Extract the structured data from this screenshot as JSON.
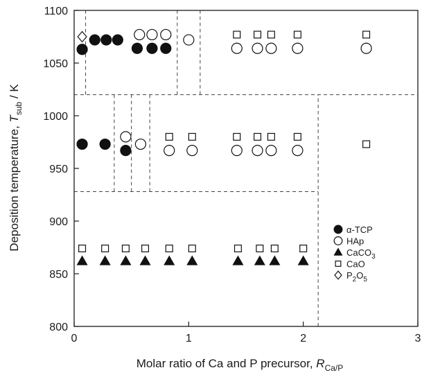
{
  "chart_data": {
    "type": "scatter",
    "xlabel": {
      "main": "Molar ratio of Ca and P precursor, ",
      "sym": "R",
      "sub": "Ca/P"
    },
    "ylabel": {
      "main": "Deposition temperature, ",
      "sym": "T",
      "sub": "sub",
      "unit": " / K"
    },
    "xlim": [
      0,
      3
    ],
    "ylim": [
      800,
      1100
    ],
    "xticks": [
      0,
      1,
      2,
      3
    ],
    "yticks": [
      800,
      850,
      900,
      950,
      1000,
      1050,
      1100
    ],
    "grid": false,
    "legend": {
      "position": "bottom-right",
      "entries": [
        {
          "series": "a_tcp",
          "parts": [
            {
              "t": "α-TCP"
            }
          ]
        },
        {
          "series": "hap",
          "parts": [
            {
              "t": "HAp"
            }
          ]
        },
        {
          "series": "caco3",
          "parts": [
            {
              "t": "CaCO"
            },
            {
              "t": "3",
              "sub": true
            }
          ]
        },
        {
          "series": "cao",
          "parts": [
            {
              "t": "CaO"
            }
          ]
        },
        {
          "series": "p2o5",
          "parts": [
            {
              "t": "P"
            },
            {
              "t": "2",
              "sub": true
            },
            {
              "t": "O"
            },
            {
              "t": "5",
              "sub": true
            }
          ]
        }
      ]
    },
    "series": [
      {
        "key": "a_tcp",
        "marker": "circle",
        "fill": "#111111",
        "points": [
          [
            0.07,
            1063
          ],
          [
            0.18,
            1072
          ],
          [
            0.28,
            1072
          ],
          [
            0.38,
            1072
          ],
          [
            0.55,
            1064
          ],
          [
            0.68,
            1064
          ],
          [
            0.8,
            1064
          ],
          [
            0.07,
            973
          ],
          [
            0.27,
            973
          ],
          [
            0.45,
            967
          ]
        ]
      },
      {
        "key": "hap",
        "marker": "circle",
        "fill": "#ffffff",
        "points": [
          [
            0.57,
            1077
          ],
          [
            0.68,
            1077
          ],
          [
            0.8,
            1077
          ],
          [
            1.0,
            1072
          ],
          [
            1.42,
            1064
          ],
          [
            1.6,
            1064
          ],
          [
            1.72,
            1064
          ],
          [
            1.95,
            1064
          ],
          [
            2.55,
            1064
          ],
          [
            0.45,
            980
          ],
          [
            0.58,
            973
          ],
          [
            0.83,
            967
          ],
          [
            1.03,
            967
          ],
          [
            1.42,
            967
          ],
          [
            1.6,
            967
          ],
          [
            1.72,
            967
          ],
          [
            1.95,
            967
          ]
        ]
      },
      {
        "key": "caco3",
        "marker": "triangle",
        "fill": "#111111",
        "points": [
          [
            0.07,
            862
          ],
          [
            0.27,
            862
          ],
          [
            0.45,
            862
          ],
          [
            0.62,
            862
          ],
          [
            0.83,
            862
          ],
          [
            1.03,
            862
          ],
          [
            1.43,
            862
          ],
          [
            1.62,
            862
          ],
          [
            1.75,
            862
          ],
          [
            2.0,
            862
          ]
        ]
      },
      {
        "key": "cao",
        "marker": "square",
        "fill": "#ffffff",
        "points": [
          [
            1.42,
            1077
          ],
          [
            1.6,
            1077
          ],
          [
            1.72,
            1077
          ],
          [
            1.95,
            1077
          ],
          [
            2.55,
            1077
          ],
          [
            0.83,
            980
          ],
          [
            1.03,
            980
          ],
          [
            1.42,
            980
          ],
          [
            1.6,
            980
          ],
          [
            1.72,
            980
          ],
          [
            1.95,
            980
          ],
          [
            2.55,
            973
          ],
          [
            0.07,
            874
          ],
          [
            0.27,
            874
          ],
          [
            0.45,
            874
          ],
          [
            0.62,
            874
          ],
          [
            0.83,
            874
          ],
          [
            1.03,
            874
          ],
          [
            1.43,
            874
          ],
          [
            1.62,
            874
          ],
          [
            1.75,
            874
          ],
          [
            2.0,
            874
          ]
        ]
      },
      {
        "key": "p2o5",
        "marker": "diamond",
        "fill": "#ffffff",
        "points": [
          [
            0.07,
            1075
          ]
        ]
      }
    ],
    "boundaries": {
      "horizontal": [
        {
          "y": 1020,
          "x0": 0,
          "x1": 3
        },
        {
          "y": 928,
          "x0": 0,
          "x1": 2.13
        }
      ],
      "vertical": [
        {
          "x": 0.1,
          "y0": 1020,
          "y1": 1100
        },
        {
          "x": 0.9,
          "y0": 1020,
          "y1": 1100
        },
        {
          "x": 1.1,
          "y0": 1020,
          "y1": 1100
        },
        {
          "x": 0.35,
          "y0": 928,
          "y1": 1020
        },
        {
          "x": 0.5,
          "y0": 928,
          "y1": 1020
        },
        {
          "x": 0.66,
          "y0": 928,
          "y1": 1020
        },
        {
          "x": 2.13,
          "y0": 800,
          "y1": 1020
        }
      ]
    }
  }
}
